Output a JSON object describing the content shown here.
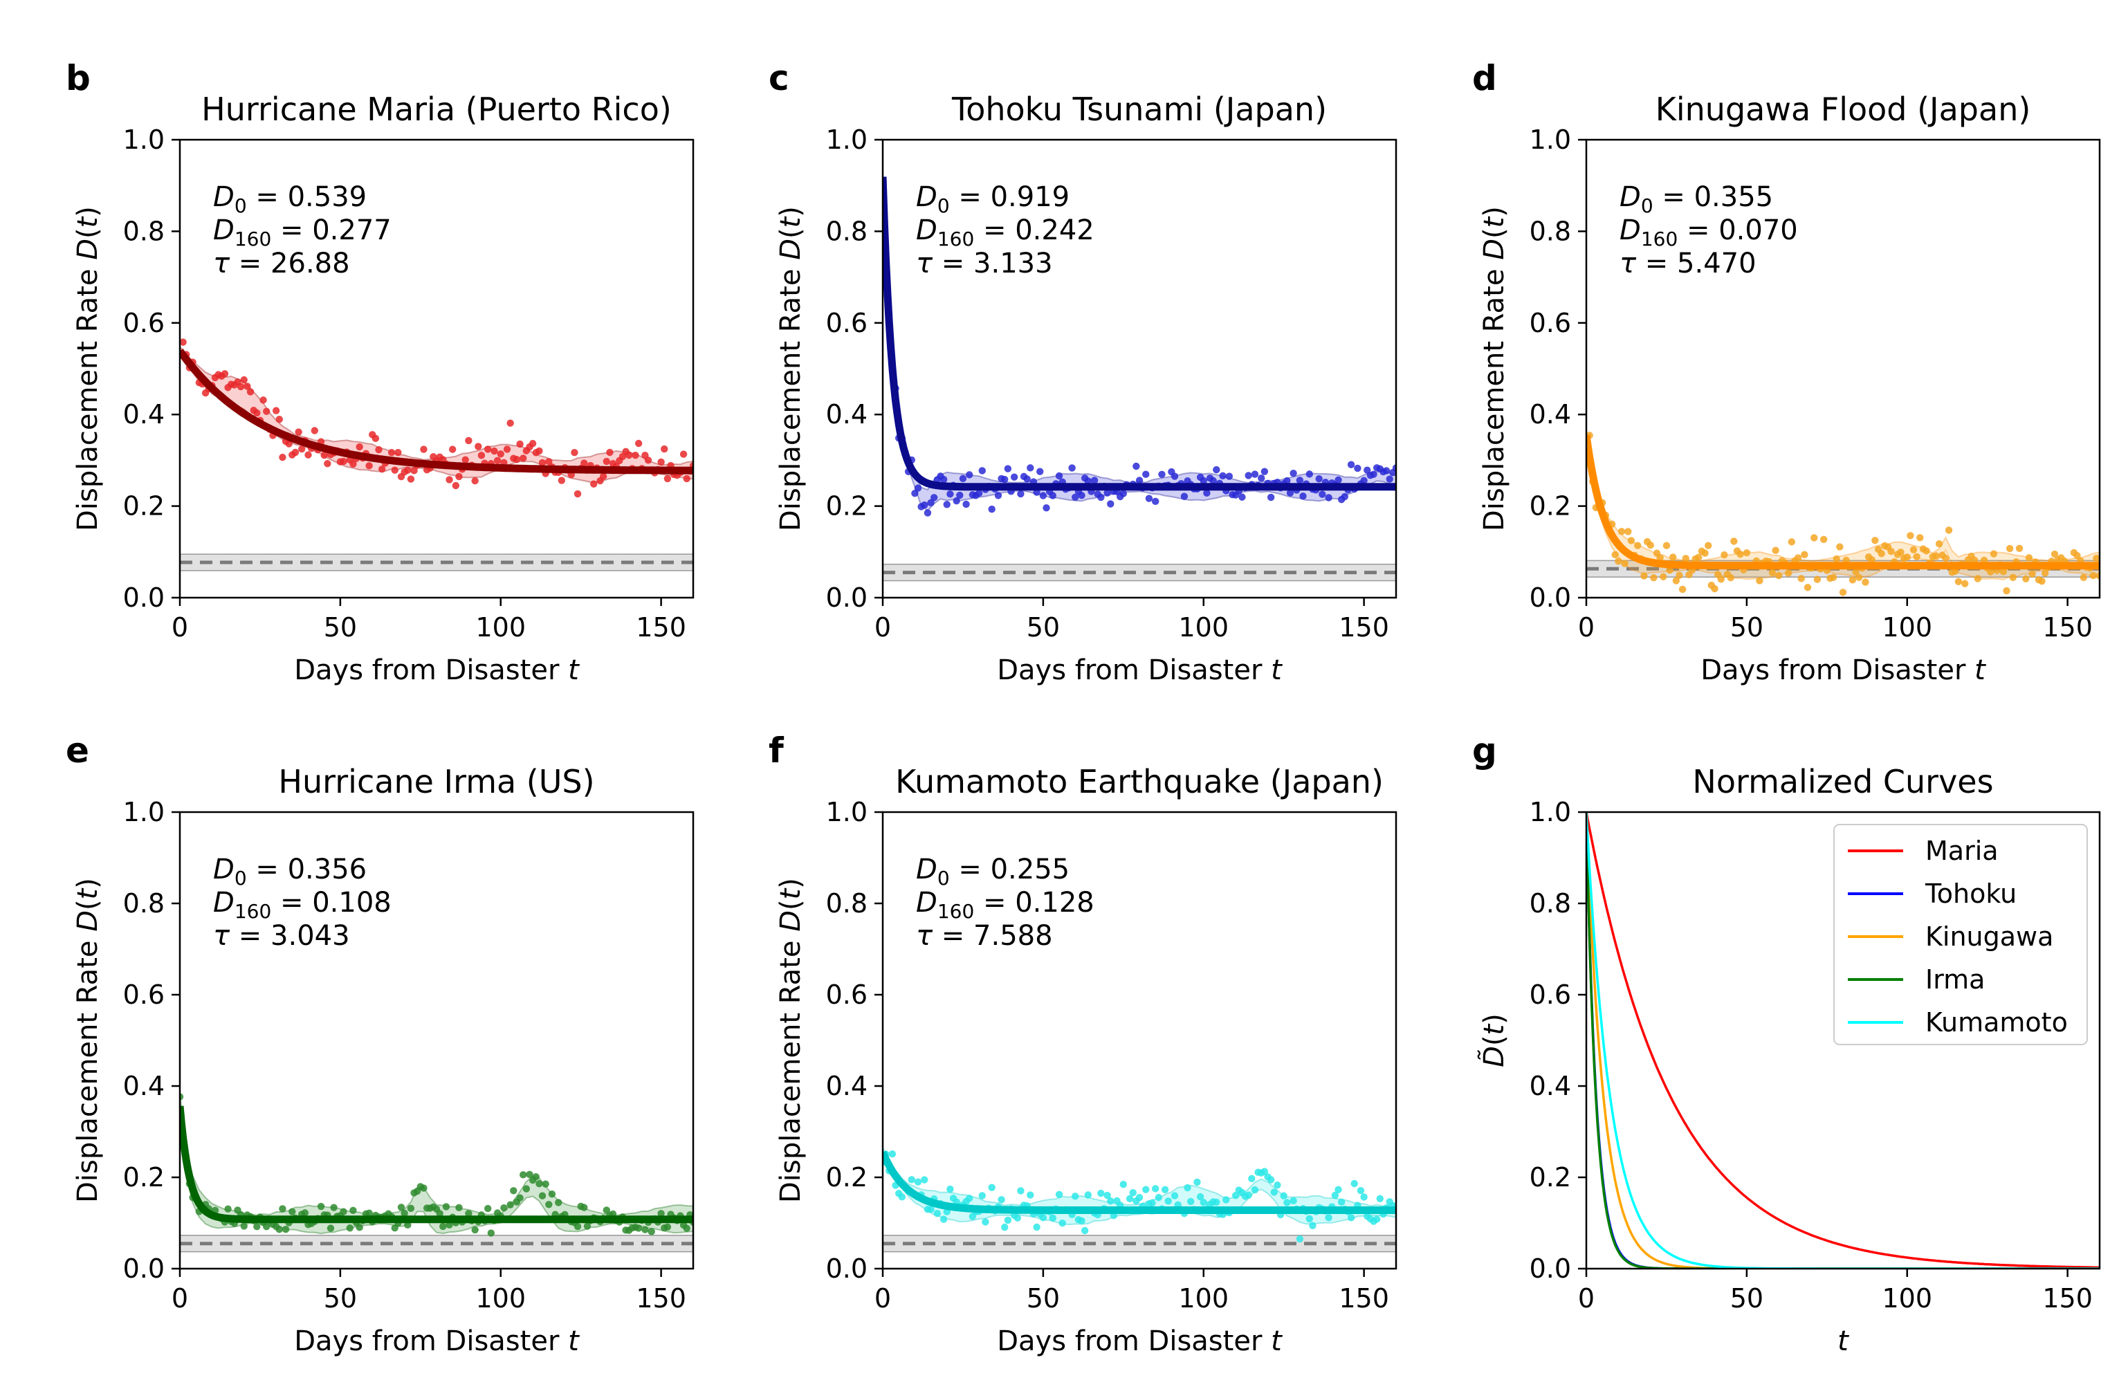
{
  "chart_data": [
    {
      "panel": "b",
      "type": "scatter",
      "title": "Hurricane Maria (Puerto Rico)",
      "xlabel": "Days from Disaster t",
      "ylabel": "Displacement Rate D(t)",
      "xlim": [
        0,
        160
      ],
      "ylim": [
        0,
        1.0
      ],
      "xticks": [
        0,
        50,
        100,
        150
      ],
      "yticks": [
        0.0,
        0.2,
        0.4,
        0.6,
        0.8,
        1.0
      ],
      "color": "#e8282a",
      "fit_color": "#8b0000",
      "D0": 0.539,
      "D160": 0.277,
      "tau": 26.88,
      "baseline": 0.077,
      "annotation": {
        "d0": "0.539",
        "d160": "0.277",
        "tau": "26.88"
      },
      "noise": 0.022,
      "seed": 11,
      "bumps": [
        {
          "t": 20,
          "a": 0.05,
          "w": 8
        },
        {
          "t": 105,
          "a": 0.04,
          "w": 10
        },
        {
          "t": 140,
          "a": 0.02,
          "w": 8
        }
      ]
    },
    {
      "panel": "c",
      "type": "scatter",
      "title": "Tohoku Tsunami (Japan)",
      "xlabel": "Days from Disaster t",
      "ylabel": "Displacement Rate D(t)",
      "xlim": [
        0,
        160
      ],
      "ylim": [
        0,
        1.0
      ],
      "xticks": [
        0,
        50,
        100,
        150
      ],
      "yticks": [
        0.0,
        0.2,
        0.4,
        0.6,
        0.8,
        1.0
      ],
      "color": "#2a2ad6",
      "fit_color": "#0b0b8c",
      "D0": 0.919,
      "D160": 0.242,
      "tau": 3.133,
      "baseline": 0.055,
      "annotation": {
        "d0": "0.919",
        "d160": "0.242",
        "tau": "3.133"
      },
      "noise": 0.018,
      "seed": 23,
      "bumps": [
        {
          "t": 13,
          "a": -0.05,
          "w": 3
        },
        {
          "t": 155,
          "a": 0.03,
          "w": 6
        }
      ]
    },
    {
      "panel": "d",
      "type": "scatter",
      "title": "Kinugawa Flood (Japan)",
      "xlabel": "Days from Disaster t",
      "ylabel": "Displacement Rate D(t)",
      "xlim": [
        0,
        160
      ],
      "ylim": [
        0,
        1.0
      ],
      "xticks": [
        0,
        50,
        100,
        150
      ],
      "yticks": [
        0.0,
        0.2,
        0.4,
        0.6,
        0.8,
        1.0
      ],
      "color": "#f5a623",
      "fit_color": "#ff8c00",
      "D0": 0.355,
      "D160": 0.07,
      "tau": 5.47,
      "baseline": 0.063,
      "annotation": {
        "d0": "0.355",
        "d160": "0.070",
        "tau": "5.470"
      },
      "noise": 0.025,
      "seed": 37,
      "bumps": [
        {
          "t": 100,
          "a": 0.04,
          "w": 10
        },
        {
          "t": 112,
          "a": 0.05,
          "w": 2
        }
      ]
    },
    {
      "panel": "e",
      "type": "scatter",
      "title": "Hurricane Irma (US)",
      "xlabel": "Days from Disaster t",
      "ylabel": "Displacement Rate D(t)",
      "xlim": [
        0,
        160
      ],
      "ylim": [
        0,
        1.0
      ],
      "xticks": [
        0,
        50,
        100,
        150
      ],
      "yticks": [
        0.0,
        0.2,
        0.4,
        0.6,
        0.8,
        1.0
      ],
      "color": "#2e8b2e",
      "fit_color": "#006400",
      "D0": 0.356,
      "D160": 0.108,
      "tau": 3.043,
      "baseline": 0.055,
      "annotation": {
        "d0": "0.356",
        "d160": "0.108",
        "tau": "3.043"
      },
      "noise": 0.015,
      "seed": 51,
      "bumps": [
        {
          "t": 75,
          "a": 0.06,
          "w": 3
        },
        {
          "t": 110,
          "a": 0.09,
          "w": 6
        }
      ]
    },
    {
      "panel": "f",
      "type": "scatter",
      "title": "Kumamoto Earthquake (Japan)",
      "xlabel": "Days from Disaster t",
      "ylabel": "Displacement Rate D(t)",
      "xlim": [
        0,
        160
      ],
      "ylim": [
        0,
        1.0
      ],
      "xticks": [
        0,
        50,
        100,
        150
      ],
      "yticks": [
        0.0,
        0.2,
        0.4,
        0.6,
        0.8,
        1.0
      ],
      "color": "#2ee8e8",
      "fit_color": "#00c8c8",
      "D0": 0.255,
      "D160": 0.128,
      "tau": 7.588,
      "baseline": 0.055,
      "annotation": {
        "d0": "0.255",
        "d160": "0.128",
        "tau": "7.588"
      },
      "noise": 0.022,
      "seed": 67,
      "bumps": [
        {
          "t": 118,
          "a": 0.07,
          "w": 6
        },
        {
          "t": 95,
          "a": 0.03,
          "w": 10
        }
      ]
    },
    {
      "panel": "g",
      "type": "line",
      "title": "Normalized Curves",
      "xlabel": "t",
      "ylabel": "D̃(t)",
      "xlim": [
        0,
        160
      ],
      "ylim": [
        0,
        1.0
      ],
      "xticks": [
        0,
        50,
        100,
        150
      ],
      "yticks": [
        0.0,
        0.2,
        0.4,
        0.6,
        0.8,
        1.0
      ],
      "legend_position": "top-right",
      "series": [
        {
          "name": "Maria",
          "color": "#ff0000",
          "tau": 26.88
        },
        {
          "name": "Tohoku",
          "color": "#0000ff",
          "tau": 3.133
        },
        {
          "name": "Kinugawa",
          "color": "#ffa500",
          "tau": 5.47
        },
        {
          "name": "Irma",
          "color": "#008000",
          "tau": 3.043
        },
        {
          "name": "Kumamoto",
          "color": "#00ffff",
          "tau": 7.588
        }
      ]
    }
  ]
}
